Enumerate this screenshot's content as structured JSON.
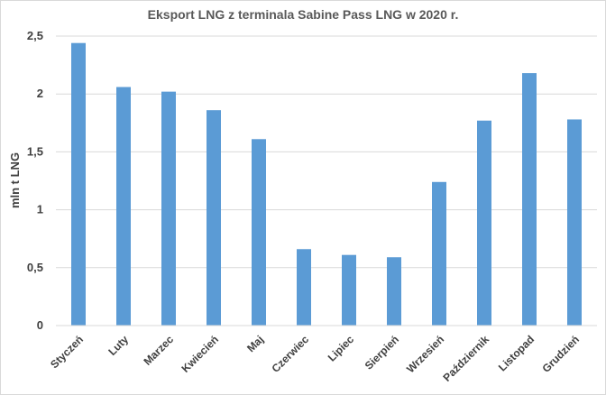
{
  "chart_data": {
    "type": "bar",
    "title": "Eksport LNG z terminala Sabine Pass LNG w 2020 r.",
    "xlabel": "",
    "ylabel": "mln t LNG",
    "categories": [
      "Styczeń",
      "Luty",
      "Marzec",
      "Kwiecień",
      "Maj",
      "Czerwiec",
      "Lipiec",
      "Sierpień",
      "Wrzesień",
      "Październik",
      "Listopad",
      "Grudzień"
    ],
    "values": [
      2.44,
      2.06,
      2.02,
      1.86,
      1.61,
      0.66,
      0.61,
      0.59,
      1.24,
      1.77,
      2.18,
      1.78
    ],
    "ylim": [
      0,
      2.5
    ],
    "yticks": [
      "0",
      "0,5",
      "1",
      "1,5",
      "2",
      "2,5"
    ],
    "grid": true,
    "legend": "none",
    "color": "#5b9bd5"
  }
}
